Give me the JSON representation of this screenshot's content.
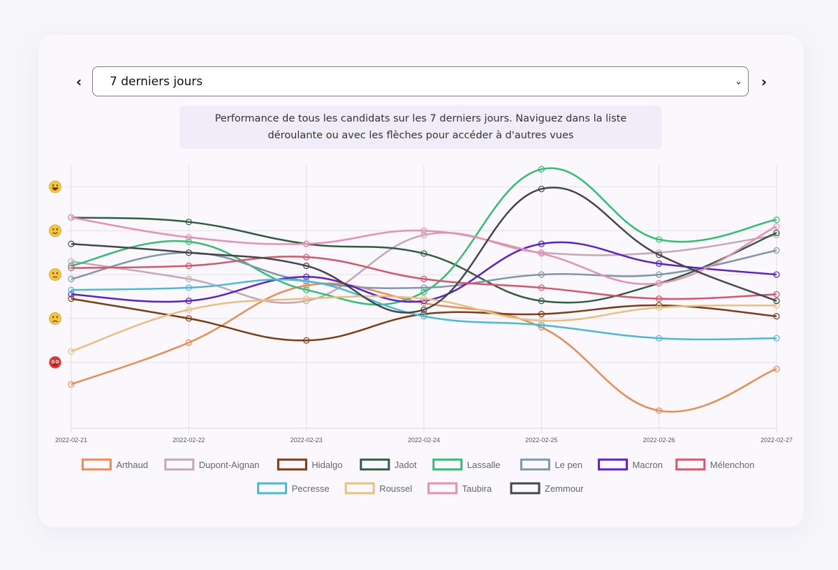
{
  "nav": {
    "prev_symbol": "‹",
    "next_symbol": "›"
  },
  "period_select": {
    "selected": "7 derniers jours"
  },
  "info": {
    "text": "Performance de tous les candidats sur les 7 derniers jours. Naviguez dans la liste déroulante ou avec les flèches pour accéder à d'autres vues"
  },
  "chart_data": {
    "type": "line",
    "x": [
      "2022-02-21",
      "2022-02-22",
      "2022-02-23",
      "2022-02-24",
      "2022-02-25",
      "2022-02-26",
      "2022-02-27"
    ],
    "ylim": [
      0,
      6
    ],
    "y_axis_icons": [
      {
        "level": 5.5,
        "icon": "laughing-face-icon"
      },
      {
        "level": 4.5,
        "icon": "smiling-face-icon"
      },
      {
        "level": 3.5,
        "icon": "neutral-face-icon"
      },
      {
        "level": 2.5,
        "icon": "sad-face-icon"
      },
      {
        "level": 1.5,
        "icon": "angry-face-icon"
      }
    ],
    "grid": true,
    "legend_position": "bottom",
    "series": [
      {
        "name": "Arthaud",
        "color": "#ef8a4f",
        "values": [
          1.0,
          1.95,
          3.25,
          2.85,
          2.3,
          0.4,
          1.35
        ]
      },
      {
        "name": "Dupont-Aignan",
        "color": "#c4a8b4",
        "values": [
          3.8,
          3.4,
          2.9,
          4.4,
          4.0,
          4.0,
          4.4
        ]
      },
      {
        "name": "Hidalgo",
        "color": "#7e3c10",
        "values": [
          2.95,
          2.5,
          2.0,
          2.6,
          2.6,
          2.8,
          2.55
        ]
      },
      {
        "name": "Jadot",
        "color": "#2f5e3e",
        "values": [
          4.8,
          4.7,
          4.2,
          3.98,
          2.9,
          3.3,
          4.45
        ]
      },
      {
        "name": "Lassalle",
        "color": "#2fbf71",
        "values": [
          3.7,
          4.25,
          3.15,
          3.1,
          5.9,
          4.3,
          4.75
        ]
      },
      {
        "name": "Le pen",
        "color": "#7d98a8",
        "values": [
          3.4,
          4.0,
          3.35,
          3.2,
          3.5,
          3.5,
          4.05
        ]
      },
      {
        "name": "Macron",
        "color": "#5b1fd1",
        "values": [
          3.05,
          2.9,
          3.45,
          2.9,
          4.2,
          3.75,
          3.5
        ]
      },
      {
        "name": "Mélenchon",
        "color": "#d95466",
        "values": [
          3.65,
          3.7,
          3.9,
          3.4,
          3.2,
          2.95,
          3.05
        ]
      },
      {
        "name": "Pecresse",
        "color": "#4ab9d9",
        "values": [
          3.15,
          3.2,
          3.35,
          2.55,
          2.35,
          2.05,
          2.05
        ]
      },
      {
        "name": "Roussel",
        "color": "#e8c07e",
        "values": [
          1.75,
          2.7,
          2.95,
          2.95,
          2.45,
          2.75,
          2.8
        ]
      },
      {
        "name": "Taubira",
        "color": "#e88fb2",
        "values": [
          4.8,
          4.35,
          4.2,
          4.5,
          3.98,
          3.3,
          4.6
        ]
      },
      {
        "name": "Zemmour",
        "color": "#46464a",
        "values": [
          4.2,
          4.0,
          3.7,
          2.7,
          5.45,
          3.95,
          2.9
        ]
      }
    ]
  }
}
